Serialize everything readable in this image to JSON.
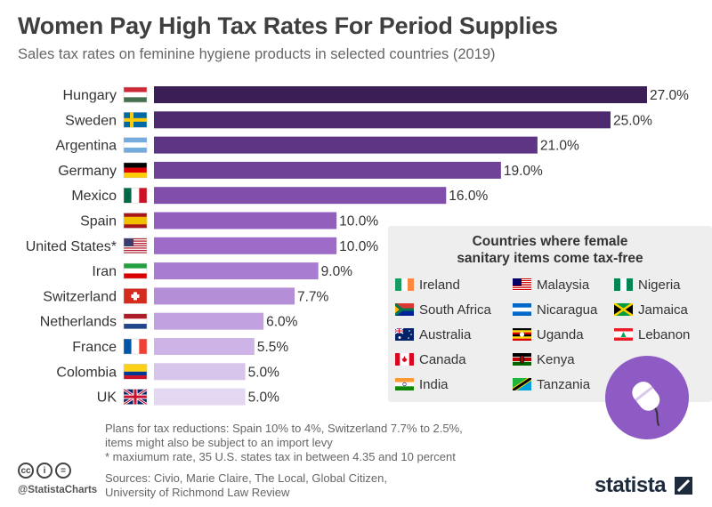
{
  "title": "Women Pay High Tax Rates For Period Supplies",
  "subtitle": "Sales tax rates on feminine hygiene products in selected countries (2019)",
  "chart_data": {
    "type": "bar",
    "orientation": "horizontal",
    "categories": [
      "Hungary",
      "Sweden",
      "Argentina",
      "Germany",
      "Mexico",
      "Spain",
      "United States*",
      "Iran",
      "Switzerland",
      "Netherlands",
      "France",
      "Colombia",
      "UK"
    ],
    "values": [
      27.0,
      25.0,
      21.0,
      19.0,
      16.0,
      10.0,
      10.0,
      9.0,
      7.7,
      6.0,
      5.5,
      5.0,
      5.0
    ],
    "value_labels": [
      "27.0%",
      "25.0%",
      "21.0%",
      "19.0%",
      "16.0%",
      "10.0%",
      "10.0%",
      "9.0%",
      "7.7%",
      "6.0%",
      "5.5%",
      "5.0%",
      "5.0%"
    ],
    "bar_colors": [
      "#3b1e55",
      "#4d2a6d",
      "#5e3585",
      "#6f4197",
      "#814fab",
      "#9260bc",
      "#9e6cc8",
      "#a87cd0",
      "#b58ed8",
      "#c1a1df",
      "#cdb3e6",
      "#d8c5ec",
      "#e4d7f2"
    ],
    "xlim": [
      0,
      27.0
    ],
    "grid": false,
    "legend": false
  },
  "taxfree": {
    "title_line1": "Countries where female",
    "title_line2": "sanitary items come tax-free",
    "countries": [
      "Ireland",
      "Malaysia",
      "Nigeria",
      "South Africa",
      "Nicaragua",
      "Jamaica",
      "Australia",
      "Uganda",
      "Lebanon",
      "Canada",
      "Kenya",
      "India",
      "Tanzania"
    ],
    "icon": "tampon-icon"
  },
  "notes": {
    "line1": "Plans for tax reductions: Spain 10% to 4%, Switzerland 7.7% to 2.5%,",
    "line2": "items might also be subject to an import levy",
    "line3": "* maxiumum rate, 35 U.S. states tax in between 4.35 and 10 percent",
    "sources1": "Sources: Civio, Marie Claire, The Local, Global Citizen,",
    "sources2": "University of Richmond Law Review"
  },
  "footer": {
    "cc_icons": [
      "cc",
      "i",
      "="
    ],
    "handle": "@StatistaCharts",
    "brand": "statista"
  },
  "colors": {
    "taxfree_box": "#eeeeef",
    "tampon_circle": "#8e5ac3",
    "brand": "#1d2b3d"
  }
}
